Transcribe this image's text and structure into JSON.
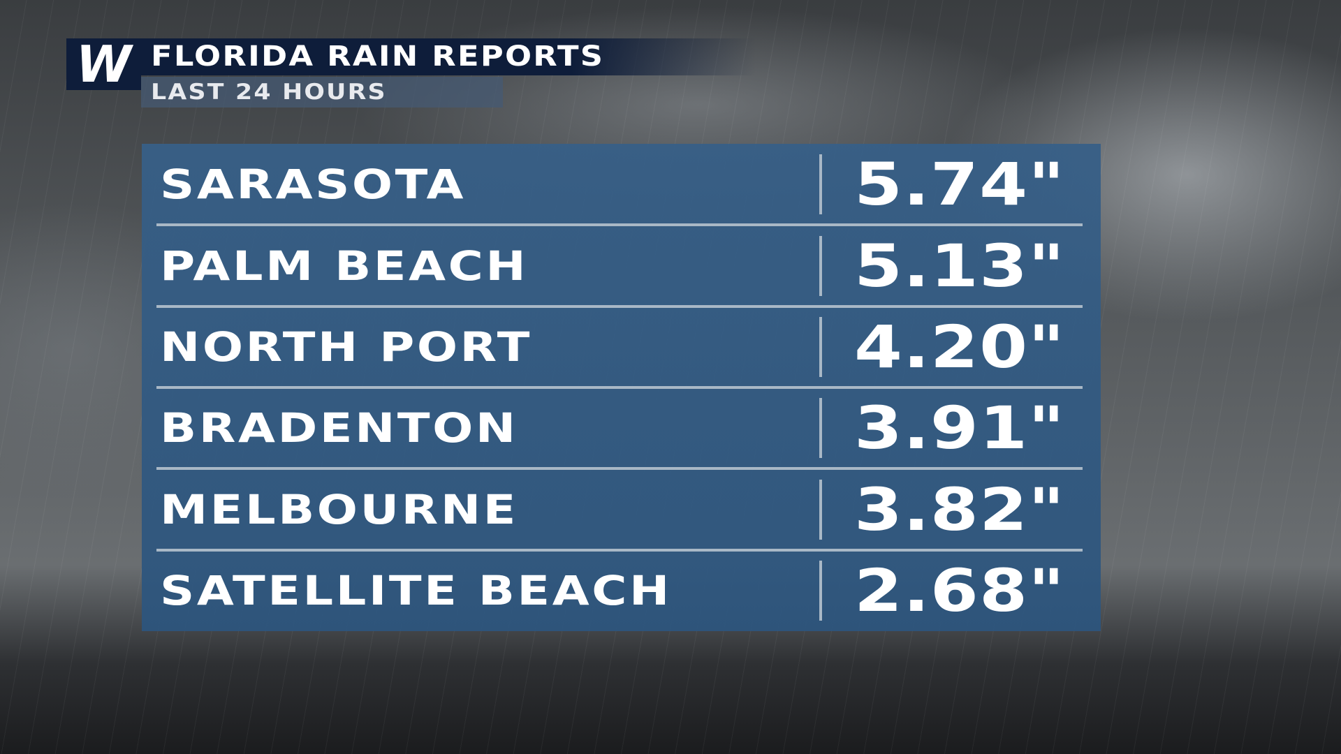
{
  "header": {
    "logo": "W",
    "title": "FLORIDA RAIN REPORTS",
    "subtitle": "LAST 24 HOURS"
  },
  "table": {
    "rows": [
      [
        "SARASOTA",
        "5.74\""
      ],
      [
        "PALM BEACH",
        "5.13\""
      ],
      [
        "NORTH PORT",
        "4.20\""
      ],
      [
        "BRADENTON",
        "3.91\""
      ],
      [
        "MELBOURNE",
        "3.82\""
      ],
      [
        "SATELLITE BEACH",
        "2.68\""
      ]
    ]
  }
}
